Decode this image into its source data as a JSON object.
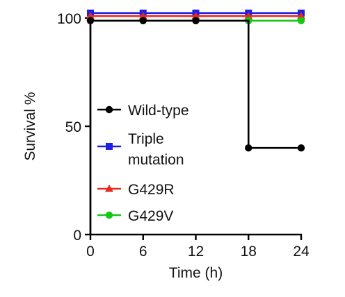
{
  "chart_data": {
    "type": "line",
    "step": true,
    "xlabel": "Time (h)",
    "ylabel": "Survival %",
    "xlim": [
      0,
      24
    ],
    "ylim": [
      0,
      100
    ],
    "xticks": [
      0,
      6,
      12,
      18,
      24
    ],
    "yticks": [
      0,
      50,
      100
    ],
    "grid": false,
    "legend_position": "center-left",
    "series": [
      {
        "name": "Wild-type",
        "name_lines": [
          "Wild-type"
        ],
        "marker": "circle",
        "color": "#000000",
        "x": [
          0,
          6,
          12,
          18,
          24
        ],
        "y": [
          100,
          100,
          100,
          40,
          40
        ],
        "also_starts_at": 0
      },
      {
        "name": "Triple mutation",
        "name_lines": [
          "Triple",
          "mutation"
        ],
        "marker": "square",
        "color": "#1f1fe6",
        "x": [
          0,
          6,
          12,
          18,
          24
        ],
        "y": [
          100,
          100,
          100,
          100,
          100
        ]
      },
      {
        "name": "G429R",
        "name_lines": [
          "G429R"
        ],
        "marker": "triangle",
        "color": "#e8291c",
        "x": [
          0,
          6,
          12,
          18,
          24
        ],
        "y": [
          100,
          100,
          100,
          100,
          100
        ]
      },
      {
        "name": "G429V",
        "name_lines": [
          "G429V"
        ],
        "marker": "circle",
        "color": "#14c814",
        "x": [
          0,
          6,
          12,
          18,
          24
        ],
        "y": [
          100,
          100,
          100,
          100,
          100
        ]
      }
    ]
  }
}
